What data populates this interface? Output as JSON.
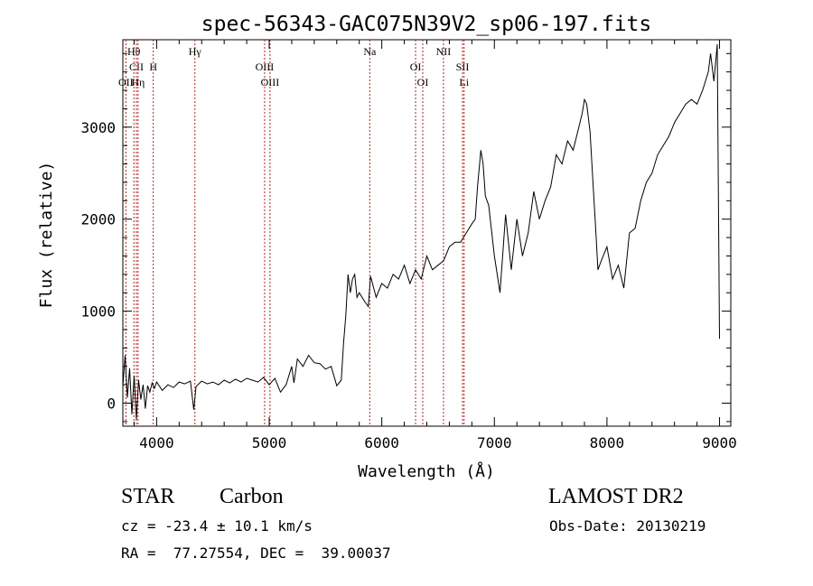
{
  "chart_data": {
    "type": "line",
    "title": "spec-56343-GAC075N39V2_sp06-197.fits",
    "xlabel": "Wavelength (Å)",
    "ylabel": "Flux (relative)",
    "xlim": [
      3700,
      9100
    ],
    "ylim": [
      -250,
      3950
    ],
    "xticks": [
      4000,
      5000,
      6000,
      7000,
      8000,
      9000
    ],
    "xtick_labels": [
      "4000",
      "5000",
      "6000",
      "7000",
      "8000",
      "9000"
    ],
    "yticks": [
      0,
      1000,
      2000,
      3000
    ],
    "ytick_labels": [
      "0",
      "1000",
      "2000",
      "3000"
    ],
    "grid": false,
    "line_color": "#000000",
    "marker_color": "#b22222",
    "series": [
      {
        "x": [
          3700,
          3720,
          3740,
          3760,
          3780,
          3800,
          3820,
          3840,
          3860,
          3880,
          3900,
          3920,
          3940,
          3960,
          3980,
          4000,
          4050,
          4100,
          4150,
          4200,
          4250,
          4300,
          4330,
          4350,
          4400,
          4450,
          4500,
          4550,
          4600,
          4650,
          4700,
          4750,
          4800,
          4850,
          4900,
          4950,
          5000,
          5050,
          5100,
          5150,
          5200,
          5220,
          5250,
          5300,
          5350,
          5400,
          5450,
          5500,
          5550,
          5600,
          5640,
          5660,
          5680,
          5700,
          5720,
          5740,
          5760,
          5780,
          5800,
          5850,
          5880,
          5900,
          5950,
          6000,
          6050,
          6100,
          6150,
          6200,
          6250,
          6300,
          6350,
          6400,
          6450,
          6500,
          6550,
          6600,
          6650,
          6700,
          6750,
          6800,
          6830,
          6850,
          6880,
          6900,
          6920,
          6950,
          7000,
          7050,
          7100,
          7150,
          7200,
          7250,
          7300,
          7350,
          7400,
          7450,
          7500,
          7550,
          7600,
          7650,
          7700,
          7750,
          7780,
          7800,
          7820,
          7850,
          7880,
          7900,
          7920,
          7950,
          8000,
          8050,
          8100,
          8150,
          8200,
          8250,
          8300,
          8350,
          8400,
          8450,
          8500,
          8550,
          8600,
          8650,
          8700,
          8750,
          8800,
          8850,
          8900,
          8920,
          8950,
          8980,
          9000
        ],
        "y": [
          180,
          520,
          60,
          380,
          -120,
          300,
          -180,
          250,
          40,
          200,
          -60,
          190,
          120,
          220,
          160,
          230,
          140,
          200,
          170,
          230,
          210,
          240,
          -70,
          180,
          240,
          210,
          230,
          200,
          250,
          220,
          260,
          230,
          270,
          250,
          230,
          280,
          200,
          270,
          120,
          200,
          400,
          220,
          480,
          400,
          520,
          440,
          430,
          370,
          400,
          190,
          250,
          650,
          950,
          1400,
          1200,
          1350,
          1400,
          1150,
          1200,
          1100,
          1050,
          1380,
          1150,
          1300,
          1250,
          1400,
          1350,
          1500,
          1300,
          1450,
          1350,
          1600,
          1450,
          1500,
          1550,
          1700,
          1750,
          1750,
          1850,
          1950,
          2000,
          2350,
          2750,
          2600,
          2250,
          2150,
          1600,
          1200,
          2050,
          1450,
          2000,
          1600,
          1850,
          2300,
          2000,
          2200,
          2350,
          2700,
          2600,
          2850,
          2750,
          3000,
          3150,
          3300,
          3250,
          2950,
          2300,
          1900,
          1450,
          1550,
          1700,
          1350,
          1500,
          1250,
          1850,
          1900,
          2200,
          2400,
          2500,
          2700,
          2800,
          2900,
          3050,
          3150,
          3250,
          3300,
          3250,
          3400,
          3600,
          3800,
          3500,
          3900,
          700
        ]
      }
    ],
    "line_markers": [
      {
        "label": "Hθ",
        "wavelength": 3798,
        "row": 0
      },
      {
        "label": "CII",
        "wavelength": 3820,
        "row": 1
      },
      {
        "label": "OII",
        "wavelength": 3727,
        "row": 2
      },
      {
        "label": "Hη",
        "wavelength": 3835,
        "row": 2
      },
      {
        "label": "H",
        "wavelength": 3970,
        "row": 1
      },
      {
        "label": "Hγ",
        "wavelength": 4340,
        "row": 0
      },
      {
        "label": "OIII",
        "wavelength": 4959,
        "row": 1
      },
      {
        "label": "OIII",
        "wavelength": 5007,
        "row": 2
      },
      {
        "label": "Na",
        "wavelength": 5893,
        "row": 0
      },
      {
        "label": "OI",
        "wavelength": 6300,
        "row": 1
      },
      {
        "label": "OI",
        "wavelength": 6364,
        "row": 2
      },
      {
        "label": "NII",
        "wavelength": 6548,
        "row": 0
      },
      {
        "label": "SII",
        "wavelength": 6717,
        "row": 1
      },
      {
        "label": "Li",
        "wavelength": 6731,
        "row": 2
      }
    ]
  },
  "info": {
    "class_label": "STAR",
    "subclass_label": "Carbon",
    "survey_label": "LAMOST DR2",
    "cz_text": "cz = -23.4 ± 10.1 km/s",
    "obs_date_text": "Obs-Date: 20130219",
    "coords_text": "RA =  77.27554, DEC =  39.00037"
  }
}
